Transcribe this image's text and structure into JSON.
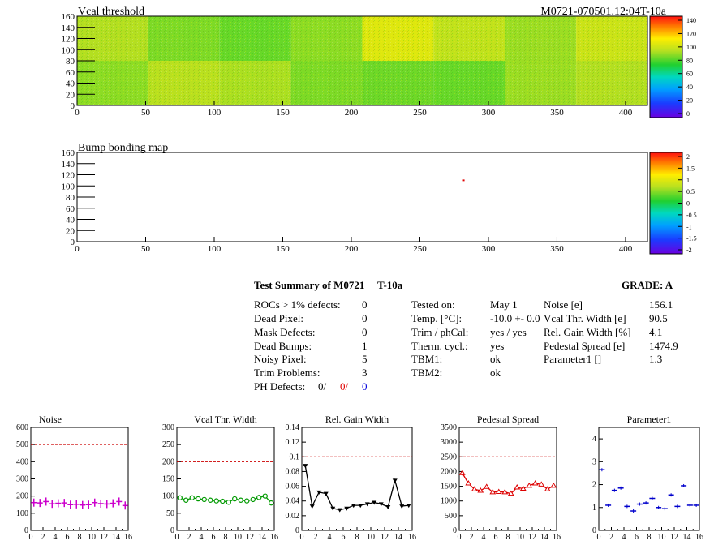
{
  "header": {
    "map1_title": "Vcal threshold",
    "module_label": "M0721-070501.12:04T-10a",
    "map2_title": "Bump bonding map"
  },
  "maps": {
    "x_ticks": [
      0,
      50,
      100,
      150,
      200,
      250,
      300,
      350,
      400
    ],
    "y_ticks": [
      0,
      20,
      40,
      60,
      80,
      100,
      120,
      140,
      160
    ],
    "xlim": [
      0,
      416
    ],
    "ylim": [
      0,
      160
    ],
    "colorbar1_ticks": [
      "140",
      "120",
      "100",
      "80",
      "60",
      "40",
      "20",
      "0"
    ],
    "colorbar2_ticks": [
      "2",
      "1.5",
      "1",
      "0.5",
      "0",
      "-0.5",
      "-1",
      "-1.5",
      "-2"
    ]
  },
  "summary": {
    "title": "Test Summary of M0721",
    "test_id": "T-10a",
    "grade": "GRADE:  A",
    "rows": [
      {
        "label": "ROCs > 1% defects:",
        "value": "0"
      },
      {
        "label": "Dead Pixel:",
        "value": "0"
      },
      {
        "label": "Mask Defects:",
        "value": "0"
      },
      {
        "label": "Dead Bumps:",
        "value": "1"
      },
      {
        "label": "Noisy Pixel:",
        "value": "5"
      },
      {
        "label": "Trim Problems:",
        "value": "3"
      }
    ],
    "ph_label": "PH Defects:",
    "ph_values": [
      "0/",
      "0/",
      "0"
    ],
    "conditions": [
      {
        "label": "Tested on:",
        "value": "May 1"
      },
      {
        "label": "Temp. [°C]:",
        "value": "-10.0 +- 0.0"
      },
      {
        "label": "Trim / phCal:",
        "value": "yes / yes"
      },
      {
        "label": "Therm. cycl.:",
        "value": "yes"
      },
      {
        "label": "TBM1:",
        "value": "ok"
      },
      {
        "label": "TBM2:",
        "value": "ok"
      }
    ],
    "results": [
      {
        "label": "Noise [e]",
        "value": "156.1"
      },
      {
        "label": "Vcal Thr. Width [e]",
        "value": "90.5"
      },
      {
        "label": "Rel. Gain Width [%]",
        "value": "4.1"
      },
      {
        "label": "Pedestal Spread [e]",
        "value": "1474.9"
      },
      {
        "label": "Parameter1 []",
        "value": "1.3"
      }
    ]
  },
  "chart_data": [
    {
      "type": "heatmap",
      "title": "Vcal threshold",
      "xlim": [
        0,
        416
      ],
      "ylim": [
        0,
        160
      ],
      "zlim": [
        0,
        145
      ],
      "note_blocks_top": [
        95,
        88,
        85,
        90,
        105,
        98,
        92,
        100
      ],
      "note_blocks_bottom": [
        90,
        96,
        94,
        88,
        86,
        85,
        92,
        95
      ]
    },
    {
      "type": "heatmap",
      "title": "Bump bonding map",
      "xlim": [
        0,
        416
      ],
      "ylim": [
        0,
        160
      ],
      "zlim": [
        -2,
        2
      ],
      "points": [
        {
          "x": 282,
          "y": 110
        }
      ]
    },
    {
      "type": "scatter",
      "title": "Noise",
      "xlim": [
        0,
        16
      ],
      "ylim": [
        0,
        600
      ],
      "x_ticks": [
        0,
        2,
        4,
        6,
        8,
        10,
        12,
        14,
        16
      ],
      "y_ticks": [
        0,
        100,
        200,
        300,
        400,
        500,
        600
      ],
      "reference_line": 500,
      "color": "#cc00cc",
      "x": [
        0,
        1,
        2,
        3,
        4,
        5,
        6,
        7,
        8,
        9,
        10,
        11,
        12,
        13,
        14,
        15
      ],
      "values": [
        162,
        160,
        168,
        155,
        158,
        160,
        150,
        152,
        148,
        150,
        162,
        156,
        154,
        158,
        168,
        145
      ]
    },
    {
      "type": "line",
      "title": "Vcal Thr. Width",
      "xlim": [
        0,
        16
      ],
      "ylim": [
        0,
        300
      ],
      "x_ticks": [
        0,
        2,
        4,
        6,
        8,
        10,
        12,
        14,
        16
      ],
      "y_ticks": [
        0,
        50,
        100,
        150,
        200,
        250,
        300
      ],
      "reference_line": 200,
      "color": "#009900",
      "x": [
        0,
        1,
        2,
        3,
        4,
        5,
        6,
        7,
        8,
        9,
        10,
        11,
        12,
        13,
        14,
        15
      ],
      "values": [
        95,
        88,
        95,
        92,
        90,
        88,
        86,
        85,
        82,
        92,
        88,
        86,
        90,
        96,
        100,
        80
      ]
    },
    {
      "type": "line",
      "title": "Rel. Gain Width",
      "xlim": [
        0,
        16
      ],
      "ylim": [
        0,
        0.14
      ],
      "x_ticks": [
        0,
        2,
        4,
        6,
        8,
        10,
        12,
        14,
        16
      ],
      "y_ticks": [
        0,
        0.02,
        0.04,
        0.06,
        0.08,
        0.1,
        0.12,
        0.14
      ],
      "reference_line": 0.1,
      "color": "#000000",
      "x": [
        0,
        1,
        2,
        3,
        4,
        5,
        6,
        7,
        8,
        9,
        10,
        11,
        12,
        13,
        14,
        15
      ],
      "values": [
        0.088,
        0.033,
        0.052,
        0.05,
        0.03,
        0.028,
        0.03,
        0.034,
        0.034,
        0.036,
        0.038,
        0.036,
        0.032,
        0.068,
        0.033,
        0.034
      ]
    },
    {
      "type": "line",
      "title": "Pedestal Spread",
      "xlim": [
        0,
        16
      ],
      "ylim": [
        0,
        3500
      ],
      "x_ticks": [
        0,
        2,
        4,
        6,
        8,
        10,
        12,
        14,
        16
      ],
      "y_ticks": [
        0,
        500,
        1000,
        1500,
        2000,
        2500,
        3000,
        3500
      ],
      "reference_line": 2500,
      "color": "#dd0000",
      "x": [
        0,
        1,
        2,
        3,
        4,
        5,
        6,
        7,
        8,
        9,
        10,
        11,
        12,
        13,
        14,
        15
      ],
      "values": [
        1950,
        1600,
        1400,
        1350,
        1480,
        1300,
        1310,
        1300,
        1250,
        1460,
        1420,
        1520,
        1600,
        1560,
        1400,
        1520
      ]
    },
    {
      "type": "scatter",
      "title": "Parameter1",
      "xlim": [
        0,
        16
      ],
      "ylim": [
        0,
        4.5
      ],
      "x_ticks": [
        0,
        2,
        4,
        6,
        8,
        10,
        12,
        14,
        16
      ],
      "y_ticks": [
        0,
        1,
        2,
        3,
        4
      ],
      "color": "#0000cc",
      "x": [
        0,
        1,
        2,
        3,
        4,
        5,
        6,
        7,
        8,
        9,
        10,
        11,
        12,
        13,
        14,
        15
      ],
      "values": [
        2.65,
        1.1,
        1.75,
        1.85,
        1.05,
        0.85,
        1.15,
        1.2,
        1.4,
        1.0,
        0.95,
        1.55,
        1.05,
        1.95,
        1.1,
        1.1
      ]
    }
  ]
}
